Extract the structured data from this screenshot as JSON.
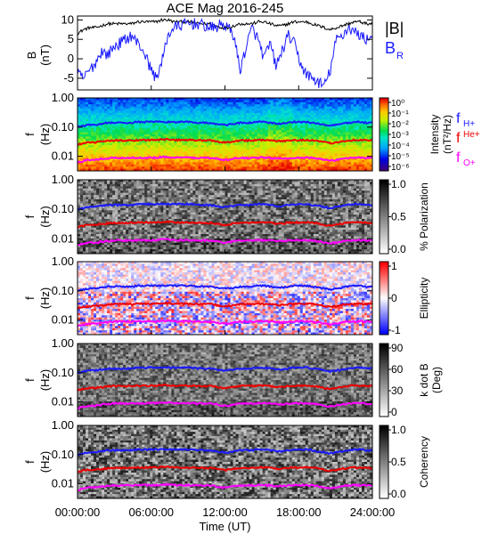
{
  "chart_data": [
    {
      "type": "line",
      "title": "ACE Mag 2016-245",
      "ylabel": "B",
      "yunit": "(nT)",
      "ylim": [
        -8,
        11
      ],
      "yticks": [
        "10",
        "5",
        "0",
        "-5"
      ],
      "legend": [
        {
          "label": "|B|",
          "color": "#000000"
        },
        {
          "label": "B",
          "sub": "R",
          "color": "#1a1aff"
        }
      ],
      "series": [
        {
          "key": "B_total",
          "color": "#000000",
          "values": [
            6.5,
            7.5,
            8,
            8,
            8.5,
            9,
            9,
            9,
            9,
            9,
            9.5,
            9.5,
            9.5,
            9.5,
            10,
            10,
            9.5,
            9.5,
            9.5,
            9.5,
            9,
            9,
            9,
            8.5,
            8,
            8,
            8.5,
            9,
            9,
            9,
            9.5,
            9.5,
            9,
            8.5,
            8.5,
            9,
            9.5,
            9.5,
            9.5,
            9,
            8.5,
            8,
            7.5,
            8,
            8.5,
            9,
            9.5,
            9.5,
            9,
            9
          ]
        },
        {
          "key": "B_R",
          "color": "#1a1aff",
          "values": [
            -4,
            -5,
            -3,
            -1,
            2,
            1,
            3,
            4,
            5,
            6,
            4,
            2,
            -2,
            -5,
            -1,
            6,
            8,
            8.5,
            9,
            9,
            9,
            8.5,
            8,
            8,
            9,
            8,
            6,
            -3,
            3,
            8,
            5,
            0,
            4,
            -2,
            2,
            6,
            4,
            -1,
            -4,
            -5,
            -6,
            -7,
            -3,
            5,
            6,
            8,
            7,
            6,
            5,
            6
          ]
        }
      ]
    },
    {
      "type": "heatmap",
      "ylabel": "f",
      "yunit": "(Hz)",
      "yticks": [
        "1.00",
        "0.10",
        "0.01"
      ],
      "colorbar": {
        "label": "Intensity",
        "unit": "(nT²/Hz)",
        "ticks": [
          "10⁰",
          "10⁻¹",
          "10⁻²",
          "10⁻³",
          "10⁻⁴",
          "10⁻⁵",
          "10⁻⁶"
        ]
      },
      "legend": [
        {
          "label": "f",
          "sub": "H+",
          "color": "#1a1aff"
        },
        {
          "label": "f",
          "sub": "He+",
          "color": "#ee0000"
        },
        {
          "label": "f",
          "sub": "O+",
          "color": "#ff00ff"
        }
      ]
    },
    {
      "type": "heatmap",
      "ylabel": "f",
      "yunit": "(Hz)",
      "yticks": [
        "1.00",
        "0.10",
        "0.01"
      ],
      "colorbar": {
        "label": "% Polarization",
        "ticks": [
          "1.0",
          "0.5",
          "0.0"
        ]
      }
    },
    {
      "type": "heatmap",
      "ylabel": "f",
      "yunit": "(Hz)",
      "yticks": [
        "1.00",
        "0.10",
        "0.01"
      ],
      "colorbar": {
        "label": "Ellipticity",
        "ticks": [
          "1",
          "0",
          "-1"
        ]
      }
    },
    {
      "type": "heatmap",
      "ylabel": "f",
      "yunit": "(Hz)",
      "yticks": [
        "1.00",
        "0.10",
        "0.01"
      ],
      "colorbar": {
        "label": "k dot B",
        "unit": "(Deg)",
        "ticks": [
          "90",
          "60",
          "30",
          "0"
        ]
      }
    },
    {
      "type": "heatmap",
      "ylabel": "f",
      "yunit": "(Hz)",
      "yticks": [
        "1.00",
        "0.10",
        "0.01"
      ],
      "colorbar": {
        "label": "Coherency",
        "ticks": [
          "1.0",
          "0.5",
          "0.0"
        ]
      }
    }
  ],
  "gyrofrequency": {
    "H_plus_hz": [
      0.1,
      0.11,
      0.12,
      0.12,
      0.13,
      0.14,
      0.14,
      0.14,
      0.14,
      0.14,
      0.15,
      0.15,
      0.15,
      0.15,
      0.15,
      0.15,
      0.15,
      0.15,
      0.15,
      0.15,
      0.14,
      0.14,
      0.14,
      0.13,
      0.12,
      0.12,
      0.13,
      0.14,
      0.14,
      0.14,
      0.15,
      0.15,
      0.14,
      0.13,
      0.13,
      0.14,
      0.15,
      0.15,
      0.15,
      0.14,
      0.13,
      0.12,
      0.11,
      0.12,
      0.13,
      0.14,
      0.15,
      0.15,
      0.14,
      0.14
    ],
    "He_plus_hz": [
      0.025,
      0.028,
      0.03,
      0.03,
      0.032,
      0.034,
      0.035,
      0.035,
      0.035,
      0.035,
      0.036,
      0.036,
      0.036,
      0.036,
      0.038,
      0.038,
      0.036,
      0.036,
      0.036,
      0.036,
      0.035,
      0.035,
      0.035,
      0.033,
      0.03,
      0.03,
      0.033,
      0.035,
      0.035,
      0.035,
      0.036,
      0.036,
      0.035,
      0.033,
      0.033,
      0.035,
      0.036,
      0.036,
      0.036,
      0.035,
      0.033,
      0.03,
      0.028,
      0.03,
      0.033,
      0.035,
      0.036,
      0.036,
      0.035,
      0.035
    ],
    "O_plus_hz": [
      0.006,
      0.007,
      0.0075,
      0.0075,
      0.008,
      0.0085,
      0.0088,
      0.0088,
      0.0088,
      0.0088,
      0.009,
      0.009,
      0.009,
      0.009,
      0.0095,
      0.0095,
      0.009,
      0.009,
      0.009,
      0.009,
      0.0088,
      0.0088,
      0.0088,
      0.0083,
      0.0075,
      0.0075,
      0.0083,
      0.0088,
      0.0088,
      0.0088,
      0.009,
      0.009,
      0.0088,
      0.0083,
      0.0083,
      0.0088,
      0.009,
      0.009,
      0.009,
      0.0088,
      0.0083,
      0.0075,
      0.007,
      0.0075,
      0.0083,
      0.0088,
      0.009,
      0.009,
      0.0088,
      0.0088
    ]
  },
  "xaxis": {
    "label": "Time (UT)",
    "ticks": [
      "00:00:00",
      "06:00:00",
      "12:00:00",
      "18:00:00",
      "24:00:00"
    ],
    "range_hours": [
      0,
      24
    ]
  },
  "colors": {
    "H_plus": "#1a1aff",
    "He_plus": "#ee0000",
    "O_plus": "#ff00ff"
  }
}
